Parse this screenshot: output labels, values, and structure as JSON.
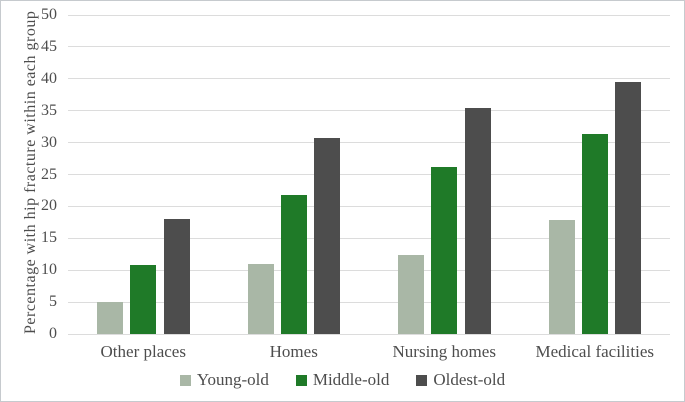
{
  "chart_data": {
    "type": "bar",
    "title": "",
    "xlabel": "",
    "ylabel": "Percentage with hip fracture within each group",
    "categories": [
      "Other places",
      "Homes",
      "Nursing homes",
      "Medical facilities"
    ],
    "series": [
      {
        "name": "Young-old",
        "color": "#a9b7a6",
        "values": [
          5.0,
          11.0,
          12.4,
          17.9
        ]
      },
      {
        "name": "Middle-old",
        "color": "#1f7a28",
        "values": [
          10.8,
          21.8,
          26.2,
          31.3
        ]
      },
      {
        "name": "Oldest-old",
        "color": "#4d4d4d",
        "values": [
          18.0,
          30.8,
          35.4,
          39.5
        ]
      }
    ],
    "ylim": [
      0,
      50
    ],
    "yticks": [
      0,
      5,
      10,
      15,
      20,
      25,
      30,
      35,
      40,
      45,
      50
    ],
    "grid": "horizontal",
    "legend_position": "bottom"
  },
  "colors": {
    "gridline": "#dcdcdc",
    "axis_text": "#4d4d4d",
    "frame_border": "#c6cace",
    "background": "#ffffff"
  }
}
